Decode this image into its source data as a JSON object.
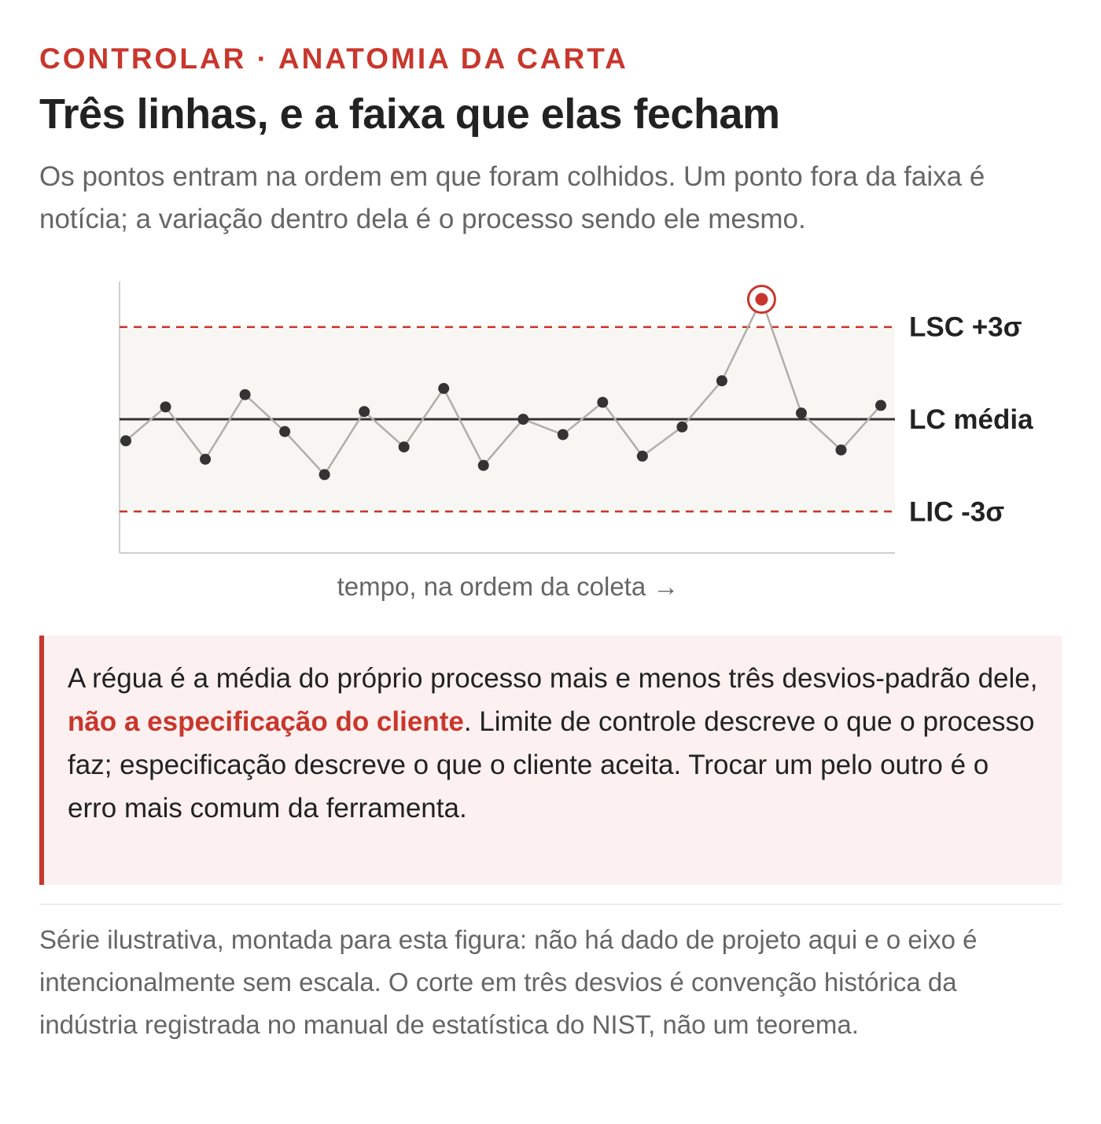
{
  "header": {
    "kicker": "CONTROLAR · ANATOMIA DA CARTA",
    "title": "Três linhas, e a faixa que elas fecham",
    "subtitle": "Os pontos entram na ordem em que foram colhidos. Um ponto fora da faixa é notícia; a variação dentro dela é o processo sendo ele mesmo."
  },
  "chart_data": {
    "type": "line",
    "title": "",
    "xlabel": "tempo, na ordem da coleta →",
    "ylabel": "",
    "ylim": [
      -3.8,
      3.8
    ],
    "grid": false,
    "control_lines": [
      {
        "name": "LSC +3σ",
        "value": 3,
        "style": "dashed",
        "color": "#c8372d"
      },
      {
        "name": "LC média",
        "value": 0,
        "style": "solid",
        "color": "#333333"
      },
      {
        "name": "LIC -3σ",
        "value": -3,
        "style": "dashed",
        "color": "#c8372d"
      }
    ],
    "band": {
      "from": -3,
      "to": 3,
      "color": "#f7f6f2"
    },
    "series": [
      {
        "x": [
          1,
          2,
          3,
          4,
          5,
          6,
          7,
          8,
          9,
          10,
          11,
          12,
          13,
          14,
          15,
          16,
          17,
          18,
          19,
          20
        ],
        "values": [
          -0.7,
          0.4,
          -1.3,
          0.8,
          -0.4,
          -1.8,
          0.25,
          -0.9,
          1.0,
          -1.5,
          0.0,
          -0.5,
          0.55,
          -1.2,
          -0.25,
          1.25,
          3.9,
          0.2,
          -1.0,
          0.45
        ],
        "color": "#888888",
        "marker_color": "#333333",
        "highlight_index": 16,
        "highlight_color": "#c8372d"
      }
    ]
  },
  "callout": {
    "before": "A régua é a média do próprio processo mais e menos três desvios-padrão dele, ",
    "highlight": "não a especificação do cliente",
    "after": ". Limite de controle descreve o que o processo faz; especificação descreve o que o cliente aceita. Trocar um pelo outro é o erro mais comum da ferramenta."
  },
  "footnote": "Série ilustrativa, montada para esta figura: não há dado de projeto aqui e o eixo é intencionalmente sem escala. O corte em três desvios é convenção histórica da indústria registrada no manual de estatística do NIST, não um teorema."
}
